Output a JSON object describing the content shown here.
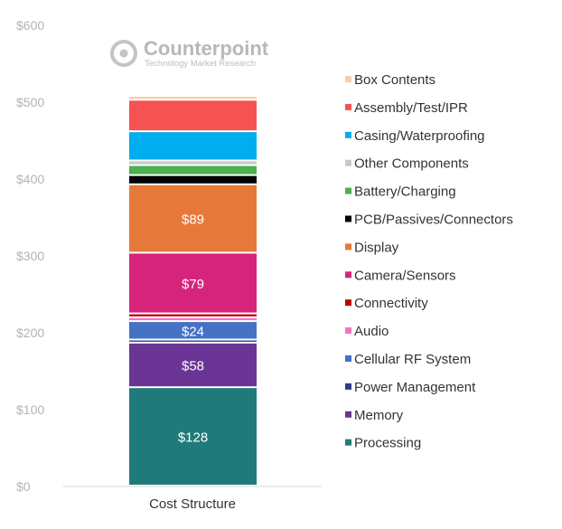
{
  "chart_data": {
    "type": "bar",
    "stacked": true,
    "categories": [
      "Cost Structure"
    ],
    "yticks": [
      "$0",
      "$100",
      "$200",
      "$300",
      "$400",
      "$500",
      "$600"
    ],
    "ylim": [
      0,
      600
    ],
    "grid": false,
    "legend_position": "right",
    "series": [
      {
        "name": "Processing",
        "value": 128,
        "label": "$128",
        "color": "#1f7a7a"
      },
      {
        "name": "Memory",
        "value": 58,
        "label": "$58",
        "color": "#6a3594"
      },
      {
        "name": "Power Management",
        "value": 4,
        "label": "",
        "color": "#2c3e8c"
      },
      {
        "name": "Cellular RF System",
        "value": 24,
        "label": "$24",
        "color": "#4472c4"
      },
      {
        "name": "Audio",
        "value": 5,
        "label": "",
        "color": "#f472c6"
      },
      {
        "name": "Connectivity",
        "value": 5,
        "label": "",
        "color": "#c00000"
      },
      {
        "name": "Camera/Sensors",
        "value": 79,
        "label": "$79",
        "color": "#d6247d"
      },
      {
        "name": "Display",
        "value": 89,
        "label": "$89",
        "color": "#e6793a"
      },
      {
        "name": "PCB/Passives/Connectors",
        "value": 12,
        "label": "",
        "color": "#000000"
      },
      {
        "name": "Battery/Charging",
        "value": 13,
        "label": "",
        "color": "#4caf50"
      },
      {
        "name": "Other Components",
        "value": 6,
        "label": "",
        "color": "#c8c8c8"
      },
      {
        "name": "Casing/Waterproofing",
        "value": 38,
        "label": "",
        "color": "#00aeef"
      },
      {
        "name": "Assembly/Test/IPR",
        "value": 41,
        "label": "",
        "color": "#f55353"
      },
      {
        "name": "Box Contents",
        "value": 5,
        "label": "",
        "color": "#f9cbb0"
      }
    ]
  },
  "watermark": {
    "title": "Counterpoint",
    "subtitle": "Technology Market Research",
    "icon": "counterpoint-logo-icon"
  }
}
